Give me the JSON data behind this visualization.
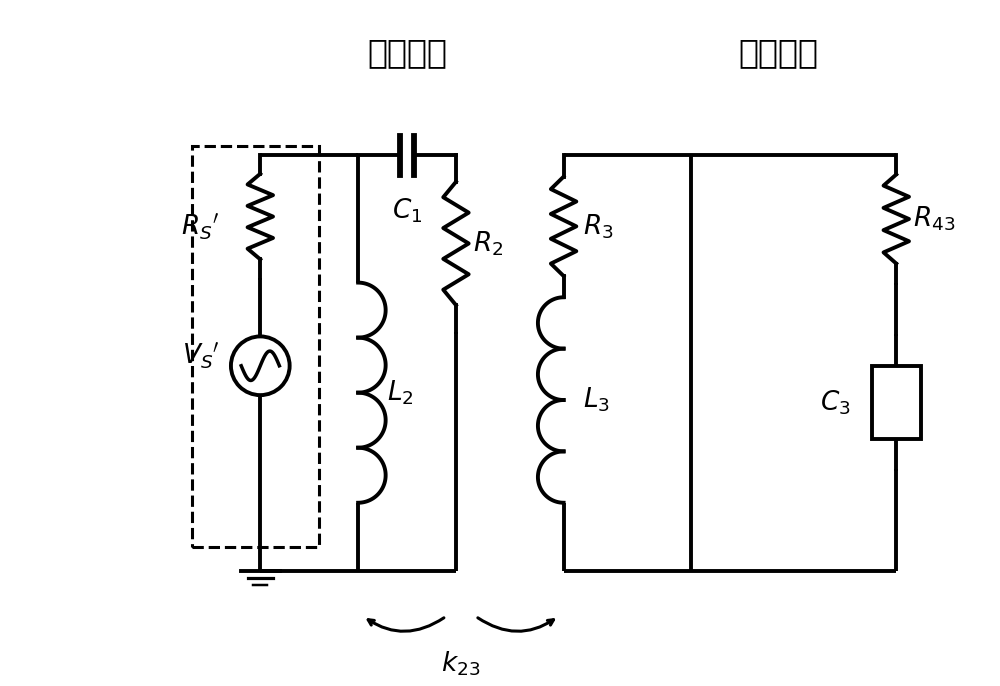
{
  "title_left": "发射线圈",
  "title_right": "接收线圈",
  "labels": {
    "C1": "$C_1$",
    "R2": "$R_2$",
    "L2": "$L_2$",
    "RS": "$R_S{}'$",
    "VS": "$V_S{}'$",
    "R3": "$R_3$",
    "L3": "$L_3$",
    "R43": "$R_{43}$",
    "C3": "$C_3$",
    "k23": "$k_{23}$"
  },
  "lw": 2.8,
  "color": "black",
  "bg": "white",
  "fig_w": 10.0,
  "fig_h": 6.86,
  "dpi": 100
}
